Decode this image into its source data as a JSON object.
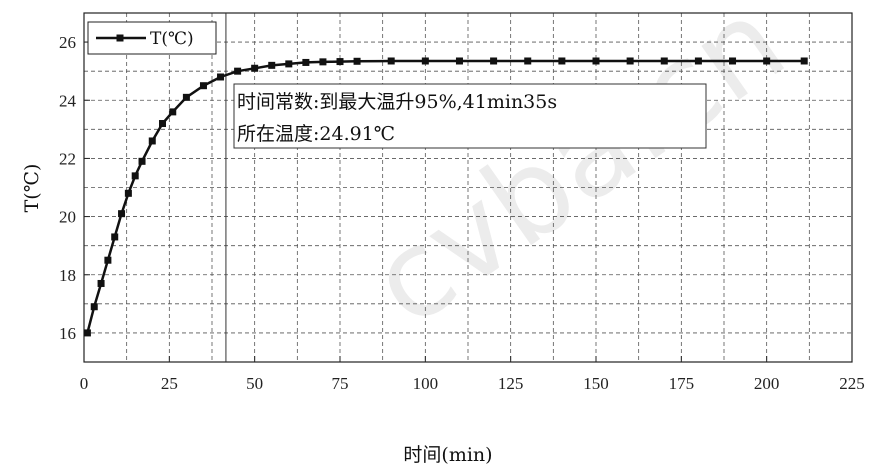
{
  "chart_data": {
    "type": "line",
    "xlabel": "时间(min)",
    "ylabel": "T(℃)",
    "xlim": [
      0,
      225
    ],
    "ylim": [
      15,
      27
    ],
    "x_ticks": [
      0,
      25,
      50,
      75,
      100,
      125,
      150,
      175,
      200,
      225
    ],
    "y_ticks": [
      16,
      18,
      20,
      22,
      24,
      26
    ],
    "grid": true,
    "legend_position": "top-left",
    "series": [
      {
        "name": "T(℃)",
        "color": "#111111",
        "marker": "square",
        "x": [
          1,
          3,
          5,
          7,
          9,
          11,
          13,
          15,
          17,
          20,
          23,
          26,
          30,
          35,
          40,
          45,
          50,
          55,
          60,
          65,
          70,
          75,
          80,
          90,
          100,
          110,
          120,
          130,
          140,
          150,
          160,
          170,
          180,
          190,
          200,
          211
        ],
        "y": [
          16.0,
          16.9,
          17.7,
          18.5,
          19.3,
          20.1,
          20.8,
          21.4,
          21.9,
          22.6,
          23.2,
          23.6,
          24.1,
          24.5,
          24.8,
          25.0,
          25.1,
          25.2,
          25.25,
          25.3,
          25.32,
          25.33,
          25.34,
          25.35,
          25.35,
          25.35,
          25.35,
          25.35,
          25.35,
          25.35,
          25.35,
          25.35,
          25.35,
          25.35,
          25.35,
          25.35
        ]
      }
    ],
    "reference_line": {
      "x": 41.58
    },
    "annotation": {
      "line1": "时间常数:到最大温升95%,41min35s",
      "line2": "所在温度:24.91℃"
    }
  },
  "watermark": "cvba.cn"
}
